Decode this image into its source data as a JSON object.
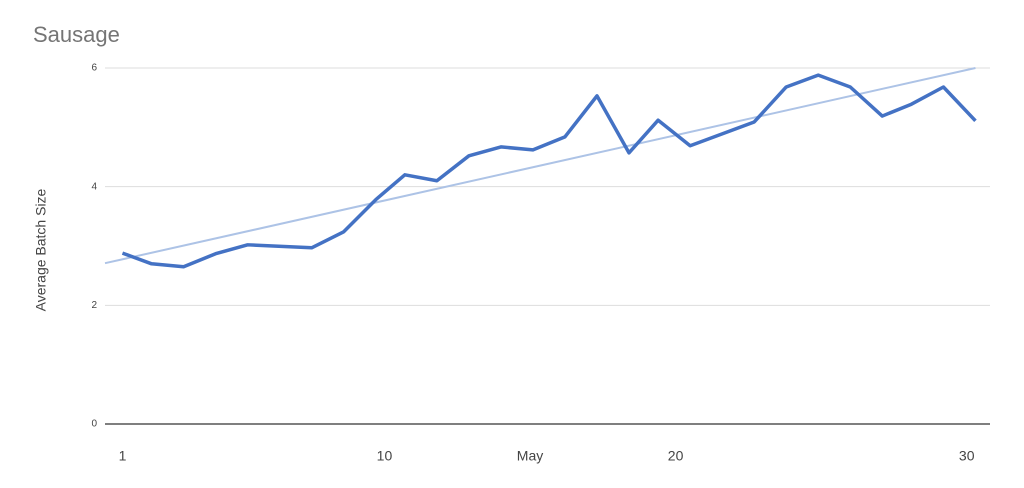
{
  "chart_data": {
    "type": "line",
    "title": "Sausage",
    "y_label": "Average Batch Size",
    "x": [
      1.0,
      2.0,
      3.1,
      4.2,
      5.3,
      7.5,
      8.6,
      9.7,
      10.7,
      11.8,
      12.9,
      14.0,
      15.1,
      16.2,
      17.3,
      18.4,
      19.4,
      20.5,
      21.6,
      22.7,
      23.8,
      24.9,
      26.0,
      27.1,
      28.1,
      29.2,
      30.3
    ],
    "series": [
      {
        "name": "Average Batch Size",
        "color": "#4472c4",
        "values": [
          2.88,
          2.7,
          2.65,
          2.87,
          3.02,
          2.97,
          3.24,
          3.78,
          4.2,
          4.1,
          4.52,
          4.67,
          4.62,
          4.84,
          5.53,
          4.57,
          5.12,
          4.69,
          4.89,
          5.09,
          5.68,
          5.88,
          5.68,
          5.19,
          5.39,
          5.68,
          5.11
        ]
      }
    ],
    "trendline": {
      "x": [
        0.4,
        30.3
      ],
      "values": [
        2.71,
        6.0
      ],
      "color": "#adc3e6"
    },
    "xlim": [
      0.4,
      30.8
    ],
    "xticks": [
      1,
      10,
      {
        "value": 15,
        "label": "May"
      },
      20,
      30
    ],
    "ylim": [
      0,
      6
    ],
    "yticks": [
      0,
      2,
      4,
      6
    ],
    "grid": true
  }
}
